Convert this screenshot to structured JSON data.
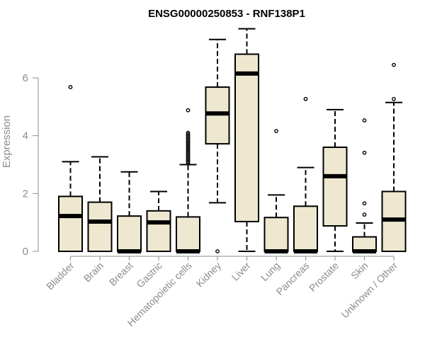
{
  "chart_data": {
    "type": "box",
    "title": "ENSG00000250853 - RNF138P1",
    "xlabel": "",
    "ylabel": "Expression",
    "ylim": [
      0,
      7.8
    ],
    "yticks": [
      0,
      2,
      4,
      6
    ],
    "grid": false,
    "colors": {
      "box_fill": "#efe8d0",
      "stroke": "#000000",
      "axis_text": "#8c8c8c"
    },
    "categories": [
      "Bladder",
      "Brain",
      "Breast",
      "Gastric",
      "Hematopoietic cells",
      "Kidney",
      "Liver",
      "Lung",
      "Pancreas",
      "Prostate",
      "Skin",
      "Unknown / Other"
    ],
    "boxes": [
      {
        "q1": 0,
        "median": 1.22,
        "q3": 1.9,
        "whisker_low": 0,
        "whisker_high": 3.1,
        "outliers": [
          5.68
        ]
      },
      {
        "q1": 0,
        "median": 1.03,
        "q3": 1.7,
        "whisker_low": 0,
        "whisker_high": 3.27,
        "outliers": []
      },
      {
        "q1": 0,
        "median": 0.0,
        "q3": 1.22,
        "whisker_low": 0,
        "whisker_high": 2.75,
        "outliers": []
      },
      {
        "q1": 0,
        "median": 1.0,
        "q3": 1.4,
        "whisker_low": 0,
        "whisker_high": 2.07,
        "outliers": []
      },
      {
        "q1": 0,
        "median": 0.0,
        "q3": 1.19,
        "whisker_low": 0,
        "whisker_high": 3.0,
        "outliers": [
          3.05,
          3.1,
          3.15,
          3.2,
          3.25,
          3.3,
          3.35,
          3.4,
          3.45,
          3.5,
          3.55,
          3.6,
          3.65,
          3.7,
          3.75,
          3.8,
          3.85,
          3.9,
          3.95,
          4.0,
          4.05,
          4.1,
          4.88
        ]
      },
      {
        "q1": 3.72,
        "median": 4.77,
        "q3": 5.68,
        "whisker_low": 1.68,
        "whisker_high": 7.33,
        "outliers": [
          0.0
        ]
      },
      {
        "q1": 1.03,
        "median": 6.15,
        "q3": 6.82,
        "whisker_low": 0,
        "whisker_high": 7.7,
        "outliers": []
      },
      {
        "q1": 0,
        "median": 0.0,
        "q3": 1.17,
        "whisker_low": 0,
        "whisker_high": 1.95,
        "outliers": [
          4.16
        ]
      },
      {
        "q1": 0,
        "median": 0.0,
        "q3": 1.56,
        "whisker_low": 0,
        "whisker_high": 2.9,
        "outliers": [
          5.27
        ]
      },
      {
        "q1": 0.88,
        "median": 2.6,
        "q3": 3.6,
        "whisker_low": 0,
        "whisker_high": 4.9,
        "outliers": []
      },
      {
        "q1": 0,
        "median": 0.0,
        "q3": 0.5,
        "whisker_low": 0,
        "whisker_high": 0.98,
        "outliers": [
          1.27,
          1.66,
          3.41,
          4.53
        ]
      },
      {
        "q1": 0,
        "median": 1.1,
        "q3": 2.07,
        "whisker_low": 0,
        "whisker_high": 5.15,
        "outliers": [
          5.27,
          6.45
        ]
      }
    ]
  }
}
